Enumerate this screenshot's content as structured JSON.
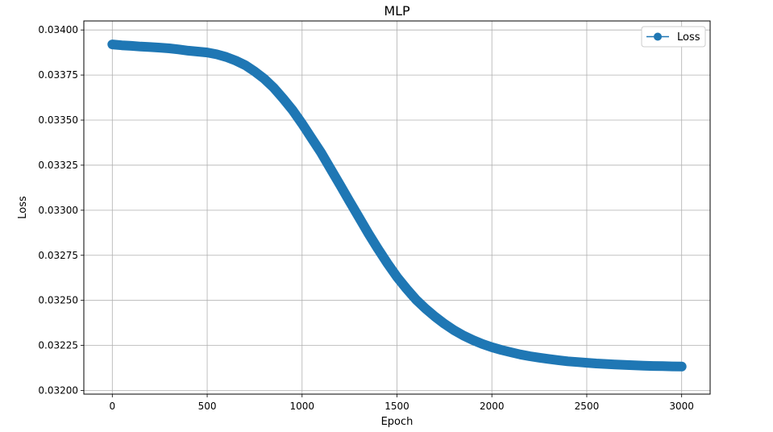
{
  "chart_data": {
    "type": "scatter",
    "title": "MLP",
    "xlabel": "Epoch",
    "ylabel": "Loss",
    "xlim": [
      -150,
      3150
    ],
    "ylim": [
      0.03198,
      0.03405
    ],
    "xticks": [
      0,
      500,
      1000,
      1500,
      2000,
      2500,
      3000
    ],
    "xtick_labels": [
      "0",
      "500",
      "1000",
      "1500",
      "2000",
      "2500",
      "3000"
    ],
    "yticks": [
      0.032,
      0.03225,
      0.0325,
      0.03275,
      0.033,
      0.03325,
      0.0335,
      0.03375,
      0.034
    ],
    "ytick_labels": [
      "0.03200",
      "0.03225",
      "0.03250",
      "0.03275",
      "0.03300",
      "0.03325",
      "0.03350",
      "0.03375",
      "0.03400"
    ],
    "grid": true,
    "legend": {
      "position": "top-right",
      "label": "Loss"
    },
    "color": "#1f77b4",
    "series": [
      {
        "name": "Loss",
        "x": [
          0,
          50,
          100,
          150,
          200,
          250,
          300,
          350,
          400,
          450,
          500,
          550,
          600,
          650,
          700,
          750,
          800,
          850,
          900,
          950,
          1000,
          1050,
          1100,
          1150,
          1200,
          1250,
          1300,
          1350,
          1400,
          1450,
          1500,
          1550,
          1600,
          1650,
          1700,
          1750,
          1800,
          1850,
          1900,
          1950,
          2000,
          2050,
          2100,
          2150,
          2200,
          2250,
          2300,
          2350,
          2400,
          2450,
          2500,
          2550,
          2600,
          2650,
          2700,
          2750,
          2800,
          2850,
          2900,
          2950,
          3000
        ],
        "y": [
          0.03392,
          0.033915,
          0.033912,
          0.033908,
          0.033905,
          0.033902,
          0.033898,
          0.033892,
          0.033885,
          0.03388,
          0.033875,
          0.033865,
          0.03385,
          0.03383,
          0.033805,
          0.03377,
          0.03373,
          0.03368,
          0.03362,
          0.033555,
          0.03348,
          0.0334,
          0.03332,
          0.03323,
          0.03314,
          0.03305,
          0.03296,
          0.03287,
          0.032785,
          0.032705,
          0.03263,
          0.032565,
          0.032505,
          0.032455,
          0.03241,
          0.03237,
          0.032335,
          0.032305,
          0.03228,
          0.032258,
          0.03224,
          0.032225,
          0.032212,
          0.0322,
          0.03219,
          0.032182,
          0.032175,
          0.032168,
          0.032162,
          0.032158,
          0.032154,
          0.03215,
          0.032147,
          0.032144,
          0.032142,
          0.03214,
          0.032138,
          0.032136,
          0.032135,
          0.032134,
          0.032133
        ]
      }
    ]
  }
}
